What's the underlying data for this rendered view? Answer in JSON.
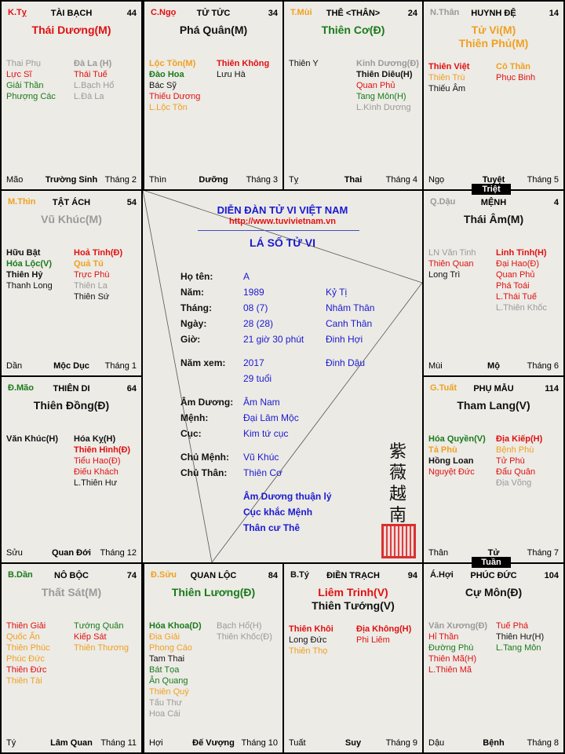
{
  "colors": {
    "red": "#e01010",
    "green": "#1a7a1a",
    "orange": "#f0a020",
    "gray": "#9a9a9a",
    "black": "#111111",
    "blue": "#1a1ad0"
  },
  "palaces": [
    {
      "can": "K.Tỵ",
      "can_color": "red",
      "name": "TÀI BẠCH",
      "age": "44",
      "main": [
        {
          "t": "Thái Dương(M)",
          "c": "red"
        }
      ],
      "left": [
        {
          "t": "Thai Phụ",
          "c": "gray"
        },
        {
          "t": "Lực Sĩ",
          "c": "red"
        },
        {
          "t": "Giải Thần",
          "c": "green"
        },
        {
          "t": "Phượng Các",
          "c": "green"
        }
      ],
      "right": [
        {
          "t": "Đà La (H)",
          "c": "gray",
          "b": true
        },
        {
          "t": "Thái Tuế",
          "c": "red"
        },
        {
          "t": "L.Bạch Hổ",
          "c": "gray"
        },
        {
          "t": "L.Đà La",
          "c": "gray"
        }
      ],
      "branch": "Mão",
      "stage": "Trường Sinh",
      "month": "Tháng 2"
    },
    {
      "can": "C.Ngọ",
      "can_color": "red",
      "name": "TỬ TỨC",
      "age": "34",
      "main": [
        {
          "t": "Phá Quân(M)",
          "c": "black"
        }
      ],
      "left": [
        {
          "t": "Lộc Tồn(M)",
          "c": "orange",
          "b": true
        },
        {
          "t": "Đào Hoa",
          "c": "green",
          "b": true
        },
        {
          "t": "Bác Sỹ",
          "c": "black"
        },
        {
          "t": "Thiếu Dương",
          "c": "red"
        },
        {
          "t": "L.Lộc Tồn",
          "c": "orange"
        }
      ],
      "right": [
        {
          "t": "Thiên Không",
          "c": "red",
          "b": true
        },
        {
          "t": "Lưu Hà",
          "c": "black"
        }
      ],
      "branch": "Thìn",
      "stage": "Dưỡng",
      "month": "Tháng 3"
    },
    {
      "can": "T.Mùi",
      "can_color": "orange",
      "name": "THÊ <THÂN>",
      "age": "24",
      "main": [
        {
          "t": "Thiên Cơ(Đ)",
          "c": "green"
        }
      ],
      "left": [
        {
          "t": "Thiên Y",
          "c": "black"
        }
      ],
      "right": [
        {
          "t": "Kinh Dương(Đ)",
          "c": "gray",
          "b": true
        },
        {
          "t": "Thiên Diêu(H)",
          "c": "black",
          "b": true
        },
        {
          "t": "Quan Phủ",
          "c": "red"
        },
        {
          "t": "Tang Môn(H)",
          "c": "green"
        },
        {
          "t": "L.Kình Dương",
          "c": "gray"
        }
      ],
      "branch": "Tỵ",
      "stage": "Thai",
      "month": "Tháng 4"
    },
    {
      "can": "N.Thân",
      "can_color": "gray",
      "name": "HUYNH ĐỆ",
      "age": "14",
      "main": [
        {
          "t": "Tử Vi(M)",
          "c": "orange"
        },
        {
          "t": "Thiên Phủ(M)",
          "c": "orange"
        }
      ],
      "left": [
        {
          "t": "Thiên Việt",
          "c": "red",
          "b": true
        },
        {
          "t": "Thiên Trù",
          "c": "orange"
        },
        {
          "t": "Thiếu Âm",
          "c": "black"
        }
      ],
      "right": [
        {
          "t": "Cô Thần",
          "c": "orange",
          "b": true
        },
        {
          "t": "Phục Binh",
          "c": "red"
        }
      ],
      "branch": "Ngọ",
      "stage": "Tuyệt",
      "month": "Tháng 5"
    },
    {
      "can": "Q.Dậu",
      "can_color": "gray",
      "name": "MỆNH",
      "age": "4",
      "main": [
        {
          "t": "Thái Âm(M)",
          "c": "black"
        }
      ],
      "left": [
        {
          "t": "LN Văn Tinh",
          "c": "gray"
        },
        {
          "t": "Thiên Quan",
          "c": "red"
        },
        {
          "t": "Long Trì",
          "c": "black"
        }
      ],
      "right": [
        {
          "t": "Linh Tinh(H)",
          "c": "red",
          "b": true
        },
        {
          "t": "Đại Hao(Đ)",
          "c": "red"
        },
        {
          "t": "Quan Phủ",
          "c": "red"
        },
        {
          "t": "Phá Toái",
          "c": "red"
        },
        {
          "t": "L.Thái Tuế",
          "c": "red"
        },
        {
          "t": "L.Thiên Khốc",
          "c": "gray"
        }
      ],
      "branch": "Mùi",
      "stage": "Mộ",
      "month": "Tháng 6"
    },
    {
      "can": "G.Tuất",
      "can_color": "orange",
      "name": "PHỤ MẪU",
      "age": "114",
      "main": [
        {
          "t": "Tham Lang(V)",
          "c": "black"
        }
      ],
      "left": [
        {
          "t": "Hóa Quyền(V)",
          "c": "green",
          "b": true
        },
        {
          "t": "Tả Phù",
          "c": "orange",
          "b": true
        },
        {
          "t": "Hồng Loan",
          "c": "black",
          "b": true
        },
        {
          "t": "Nguyệt Đức",
          "c": "red"
        }
      ],
      "right": [
        {
          "t": "Địa Kiếp(H)",
          "c": "red",
          "b": true
        },
        {
          "t": "Bệnh Phù",
          "c": "orange"
        },
        {
          "t": "Tử Phù",
          "c": "red"
        },
        {
          "t": "Đẩu Quân",
          "c": "red"
        },
        {
          "t": "Địa Võng",
          "c": "gray"
        }
      ],
      "branch": "Thân",
      "stage": "Tử",
      "month": "Tháng 7"
    },
    {
      "can": "Á.Hợi",
      "can_color": "black",
      "name": "PHÚC ĐỨC",
      "age": "104",
      "main": [
        {
          "t": "Cự Môn(Đ)",
          "c": "black"
        }
      ],
      "left": [
        {
          "t": "Văn Xương(Đ)",
          "c": "gray",
          "b": true
        },
        {
          "t": "Hỉ Thần",
          "c": "red"
        },
        {
          "t": "Đường Phù",
          "c": "green"
        },
        {
          "t": "Thiên Mã(H)",
          "c": "red"
        },
        {
          "t": "L.Thiên Mã",
          "c": "red"
        }
      ],
      "right": [
        {
          "t": "Tuế Phá",
          "c": "red"
        },
        {
          "t": "Thiên Hư(H)",
          "c": "black"
        },
        {
          "t": "L.Tang Môn",
          "c": "green"
        }
      ],
      "branch": "Dậu",
      "stage": "Bệnh",
      "month": "Tháng 8"
    },
    {
      "can": "B.Tý",
      "can_color": "black",
      "name": "ĐIỀN TRẠCH",
      "age": "94",
      "main": [
        {
          "t": "Liêm Trinh(V)",
          "c": "red"
        },
        {
          "t": "Thiên Tướng(V)",
          "c": "black"
        }
      ],
      "left": [
        {
          "t": "Thiên Khôi",
          "c": "red",
          "b": true
        },
        {
          "t": "Long Đức",
          "c": "black"
        },
        {
          "t": "Thiên Thọ",
          "c": "orange"
        }
      ],
      "right": [
        {
          "t": "Địa Không(H)",
          "c": "red",
          "b": true
        },
        {
          "t": "Phi Liêm",
          "c": "red"
        }
      ],
      "branch": "Tuất",
      "stage": "Suy",
      "month": "Tháng 9"
    },
    {
      "can": "Đ.Sửu",
      "can_color": "orange",
      "name": "QUAN LỘC",
      "age": "84",
      "main": [
        {
          "t": "Thiên Lương(Đ)",
          "c": "green"
        }
      ],
      "left": [
        {
          "t": "Hóa Khoa(D)",
          "c": "green",
          "b": true
        },
        {
          "t": "Địa Giải",
          "c": "orange"
        },
        {
          "t": "Phong Cáo",
          "c": "orange"
        },
        {
          "t": "Tam Thai",
          "c": "black"
        },
        {
          "t": "Bát Tọa",
          "c": "green"
        },
        {
          "t": "Ân Quang",
          "c": "green"
        },
        {
          "t": "Thiên Quý",
          "c": "orange"
        },
        {
          "t": "Tấu Thư",
          "c": "gray"
        },
        {
          "t": "Hoa Cái",
          "c": "gray"
        }
      ],
      "right": [
        {
          "t": "Bạch Hổ(H)",
          "c": "gray"
        },
        {
          "t": "Thiên Khốc(Đ)",
          "c": "gray"
        }
      ],
      "branch": "Hợi",
      "stage": "Đế Vượng",
      "month": "Tháng 10"
    },
    {
      "can": "B.Dần",
      "can_color": "green",
      "name": "NÔ BỘC",
      "age": "74",
      "main": [
        {
          "t": "Thất Sát(M)",
          "c": "gray"
        }
      ],
      "left": [
        {
          "t": "Thiên Giải",
          "c": "red"
        },
        {
          "t": "Quốc Ấn",
          "c": "orange"
        },
        {
          "t": "Thiên Phúc",
          "c": "orange"
        },
        {
          "t": "Phúc Đức",
          "c": "orange"
        },
        {
          "t": "Thiên Đức",
          "c": "red"
        },
        {
          "t": "Thiên Tài",
          "c": "orange"
        }
      ],
      "right": [
        {
          "t": "Tướng Quân",
          "c": "green"
        },
        {
          "t": "Kiếp Sát",
          "c": "red"
        },
        {
          "t": "Thiên Thương",
          "c": "orange"
        }
      ],
      "branch": "Tý",
      "stage": "Lâm Quan",
      "month": "Tháng 11"
    },
    {
      "can": "Đ.Mão",
      "can_color": "green",
      "name": "THIÊN DI",
      "age": "64",
      "main": [
        {
          "t": "Thiên Đồng(Đ)",
          "c": "black"
        }
      ],
      "left": [
        {
          "t": "Văn Khúc(H)",
          "c": "black",
          "b": true
        }
      ],
      "right": [
        {
          "t": "Hóa Kỵ(H)",
          "c": "black",
          "b": true
        },
        {
          "t": "Thiên Hình(Đ)",
          "c": "red",
          "b": true
        },
        {
          "t": "Tiểu Hao(Đ)",
          "c": "red"
        },
        {
          "t": "Điếu Khách",
          "c": "red"
        },
        {
          "t": "L.Thiên Hư",
          "c": "black"
        }
      ],
      "branch": "Sửu",
      "stage": "Quan Đới",
      "month": "Tháng 12"
    },
    {
      "can": "M.Thìn",
      "can_color": "orange",
      "name": "TẬT ÁCH",
      "age": "54",
      "main": [
        {
          "t": "Vũ Khúc(M)",
          "c": "gray"
        }
      ],
      "left": [
        {
          "t": "Hữu Bật",
          "c": "black",
          "b": true
        },
        {
          "t": "Hóa Lộc(V)",
          "c": "green",
          "b": true
        },
        {
          "t": "Thiên Hỷ",
          "c": "black",
          "b": true
        },
        {
          "t": "Thanh Long",
          "c": "black"
        }
      ],
      "right": [
        {
          "t": "Hoả Tinh(Đ)",
          "c": "red",
          "b": true
        },
        {
          "t": "Quả Tú",
          "c": "orange",
          "b": true
        },
        {
          "t": "Trực Phù",
          "c": "red"
        },
        {
          "t": "Thiên La",
          "c": "gray"
        },
        {
          "t": "Thiên Sứ",
          "c": "black"
        }
      ],
      "branch": "Dần",
      "stage": "Mộc Dục",
      "month": "Tháng 1"
    }
  ],
  "badges": {
    "triet": "Triệt",
    "tuan": "Tuần"
  },
  "center": {
    "forum": "DIỄN ĐÀN TỬ VI VIỆT NAM",
    "url": "http://www.tuvivietnam.vn",
    "title": "LÁ SỐ TỬ VI",
    "rows": [
      {
        "label": "Họ tên:",
        "value": "A",
        "extra": ""
      },
      {
        "label": "Năm:",
        "value": "1989",
        "extra": "Kỷ Tị"
      },
      {
        "label": "Tháng:",
        "value": "08 (7)",
        "extra": "Nhâm Thân"
      },
      {
        "label": "Ngày:",
        "value": "28 (28)",
        "extra": "Canh Thân"
      },
      {
        "label": "Giờ:",
        "value": "21 giờ 30 phút",
        "extra": "Đinh Hợi"
      },
      {
        "label": "Năm xem:",
        "value": "2017",
        "extra": "Đinh Dậu"
      },
      {
        "label": "",
        "value": "29 tuổi",
        "extra": ""
      },
      {
        "label": "Âm Dương:",
        "value": "Âm Nam",
        "extra": ""
      },
      {
        "label": "Mệnh:",
        "value": "Đại Lâm Mộc",
        "extra": ""
      },
      {
        "label": "Cục:",
        "value": "Kim tứ cục",
        "extra": ""
      },
      {
        "label": "Chủ Mệnh:",
        "value": "Vũ Khúc",
        "extra": ""
      },
      {
        "label": "Chủ Thân:",
        "value": "Thiên Cơ",
        "extra": ""
      }
    ],
    "notes": [
      "Âm Dương thuận lý",
      "Cục khắc Mệnh",
      "Thân cư Thê"
    ],
    "hanzi": [
      "紫",
      "薇",
      "越",
      "南"
    ],
    "seal": "red-seal-stamp"
  }
}
